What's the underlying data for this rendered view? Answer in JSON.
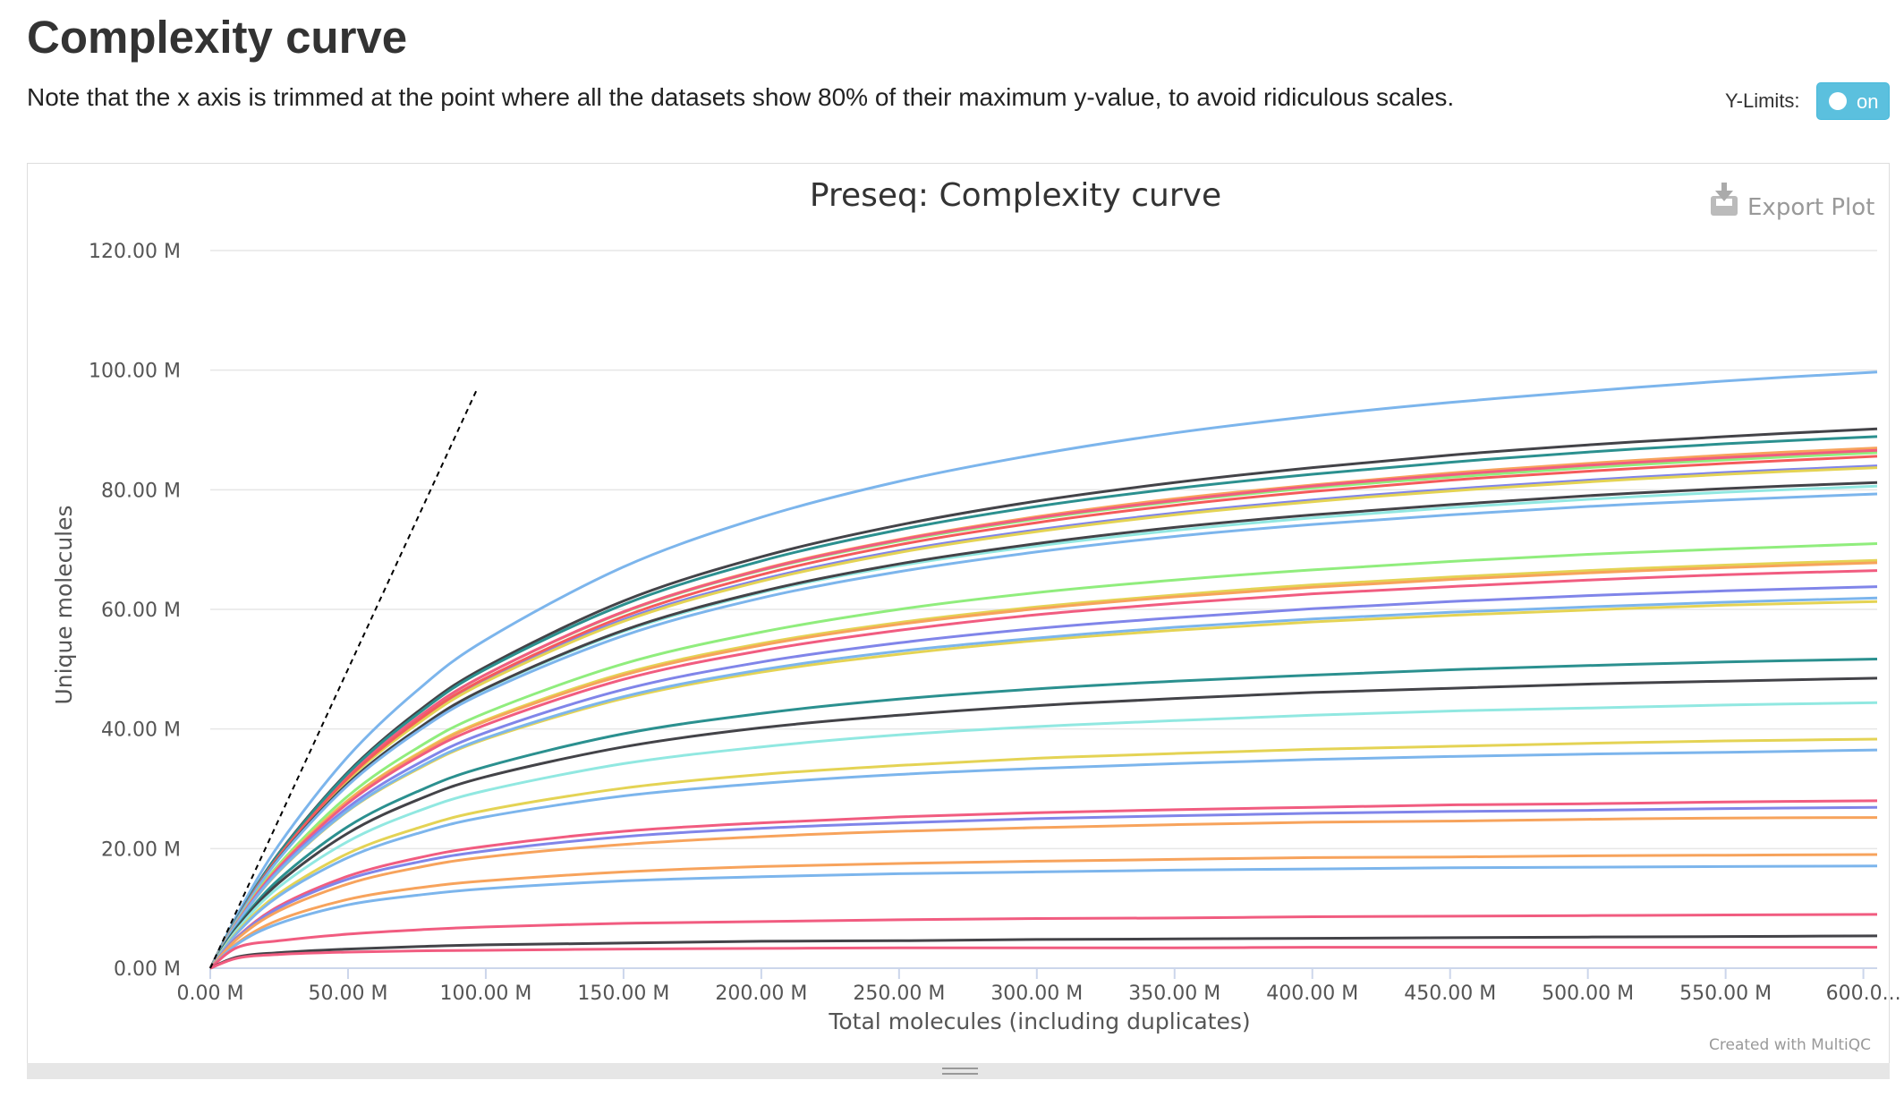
{
  "header": {
    "title": "Complexity curve",
    "note": "Note that the x axis is trimmed at the point where all the datasets show 80% of their maximum y-value, to avoid ridiculous scales.",
    "ylimits_label": "Y-Limits:",
    "ylimits_toggle_label": "on"
  },
  "plot": {
    "export_label": "Export Plot",
    "credit": "Created with MultiQC"
  },
  "chart_data": {
    "type": "line",
    "title": "Preseq: Complexity curve",
    "xlabel": "Total molecules (including duplicates)",
    "ylabel": "Unique molecules",
    "xlim": [
      0,
      605
    ],
    "ylim": [
      0,
      120
    ],
    "x_unit": "M",
    "y_unit": "M",
    "grid": true,
    "legend": "none",
    "x_ticks": [
      "0.00 M",
      "50.00 M",
      "100.00 M",
      "150.00 M",
      "200.00 M",
      "250.00 M",
      "300.00 M",
      "350.00 M",
      "400.00 M",
      "450.00 M",
      "500.00 M",
      "550.00 M",
      "600.0..."
    ],
    "x_tick_values": [
      0,
      50,
      100,
      150,
      200,
      250,
      300,
      350,
      400,
      450,
      500,
      550,
      600
    ],
    "y_ticks": [
      "0.00 M",
      "20.00 M",
      "40.00 M",
      "60.00 M",
      "80.00 M",
      "100.00 M",
      "120.00 M"
    ],
    "y_tick_values": [
      0,
      20,
      40,
      60,
      80,
      100,
      120
    ],
    "x_sample_points": [
      0,
      10,
      25,
      50,
      75,
      100,
      150,
      200,
      250,
      300,
      350,
      400,
      450,
      500,
      550,
      605
    ],
    "reference_line": {
      "name": "x = y",
      "x": [
        0,
        97
      ],
      "y": [
        0,
        97
      ],
      "style": "dashed",
      "color": "#000000"
    },
    "series": [
      {
        "color": "#7cb5ec",
        "y": [
          0,
          9.1,
          20.7,
          35.4,
          46.4,
          54.9,
          67.1,
          75.4,
          81.4,
          85.9,
          89.5,
          92.3,
          94.6,
          96.5,
          98.2,
          99.7
        ]
      },
      {
        "color": "#434348",
        "y": [
          0,
          8.6,
          19.3,
          32.8,
          42.8,
          50.4,
          61.4,
          68.8,
          74.1,
          78.1,
          81.2,
          83.7,
          85.8,
          87.5,
          88.9,
          90.2
        ]
      },
      {
        "color": "#90ed7d",
        "y": [
          0,
          8.5,
          19.0,
          32.1,
          41.7,
          49.1,
          59.5,
          66.5,
          71.4,
          75.1,
          78.0,
          80.3,
          82.1,
          83.7,
          85.0,
          86.2
        ]
      },
      {
        "color": "#f7a35c",
        "y": [
          0,
          8.5,
          19.0,
          32.1,
          41.8,
          49.1,
          59.6,
          66.7,
          71.7,
          75.5,
          78.5,
          80.8,
          82.8,
          84.4,
          85.8,
          87.0
        ]
      },
      {
        "color": "#8085e9",
        "y": [
          0,
          8.4,
          18.8,
          31.7,
          41.1,
          48.2,
          58.3,
          65.0,
          69.8,
          73.3,
          76.1,
          78.3,
          80.1,
          81.6,
          82.9,
          84.0
        ]
      },
      {
        "color": "#f15c80",
        "y": [
          0,
          8.5,
          19.0,
          32.1,
          41.8,
          49.1,
          59.6,
          66.6,
          71.6,
          75.3,
          78.2,
          80.6,
          82.5,
          84.1,
          85.4,
          86.6
        ]
      },
      {
        "color": "#e4d354",
        "y": [
          0,
          8.4,
          18.7,
          31.5,
          40.8,
          47.9,
          58.0,
          64.7,
          69.5,
          73.0,
          75.8,
          78.0,
          79.8,
          81.3,
          82.6,
          83.7
        ]
      },
      {
        "color": "#2b908f",
        "y": [
          0,
          8.6,
          19.2,
          32.6,
          42.4,
          50.0,
          60.8,
          68.1,
          73.3,
          77.2,
          80.2,
          82.6,
          84.6,
          86.3,
          87.7,
          88.9
        ]
      },
      {
        "color": "#f45b5b",
        "y": [
          0,
          8.4,
          18.8,
          31.8,
          41.3,
          48.5,
          58.8,
          65.8,
          70.8,
          74.5,
          77.4,
          79.7,
          81.6,
          83.1,
          84.4,
          85.6
        ]
      },
      {
        "color": "#91e8e1",
        "y": [
          0,
          8.3,
          18.4,
          30.9,
          39.9,
          46.7,
          56.3,
          62.8,
          67.3,
          70.6,
          73.2,
          75.3,
          77.0,
          78.4,
          79.6,
          80.6
        ]
      },
      {
        "color": "#434348",
        "y": [
          0,
          8.3,
          18.4,
          30.9,
          39.9,
          46.8,
          56.5,
          63.0,
          67.6,
          71.0,
          73.7,
          75.8,
          77.5,
          79.0,
          80.2,
          81.2
        ]
      },
      {
        "color": "#7cb5ec",
        "y": [
          0,
          8.3,
          18.3,
          30.6,
          39.5,
          46.2,
          55.6,
          61.9,
          66.3,
          69.6,
          72.2,
          74.2,
          75.8,
          77.2,
          78.3,
          79.3
        ]
      },
      {
        "color": "#90ed7d",
        "y": [
          0,
          8.0,
          17.4,
          28.8,
          36.8,
          42.7,
          50.9,
          56.2,
          60.0,
          62.8,
          64.9,
          66.6,
          68.0,
          69.2,
          70.1,
          71.0
        ]
      },
      {
        "color": "#e4d354",
        "y": [
          0,
          7.9,
          17.1,
          28.1,
          35.8,
          41.5,
          49.3,
          54.3,
          57.8,
          60.4,
          62.4,
          64.1,
          65.4,
          66.5,
          67.4,
          68.2
        ]
      },
      {
        "color": "#f7a35c",
        "y": [
          0,
          7.9,
          17.0,
          28.0,
          35.6,
          41.3,
          49.0,
          54.0,
          57.5,
          60.1,
          62.1,
          63.7,
          65.0,
          66.1,
          67.0,
          67.8
        ]
      },
      {
        "color": "#f15c80",
        "y": [
          0,
          7.8,
          16.9,
          27.6,
          35.2,
          40.7,
          48.3,
          53.1,
          56.5,
          59.1,
          61.0,
          62.6,
          63.8,
          64.9,
          65.8,
          66.5
        ]
      },
      {
        "color": "#8085e9",
        "y": [
          0,
          7.7,
          16.5,
          26.9,
          34.1,
          39.4,
          46.6,
          51.2,
          54.4,
          56.8,
          58.6,
          60.1,
          61.3,
          62.3,
          63.1,
          63.8
        ]
      },
      {
        "color": "#e4d354",
        "y": [
          0,
          7.6,
          16.2,
          26.3,
          33.2,
          38.3,
          45.1,
          49.5,
          52.5,
          54.8,
          56.5,
          57.9,
          59.0,
          59.9,
          60.7,
          61.3
        ]
      },
      {
        "color": "#7cb5ec",
        "y": [
          0,
          7.6,
          16.3,
          26.4,
          33.4,
          38.5,
          45.4,
          49.9,
          53.0,
          55.2,
          57.0,
          58.4,
          59.5,
          60.4,
          61.2,
          61.9
        ]
      },
      {
        "color": "#2b908f",
        "y": [
          0,
          7.1,
          14.9,
          23.7,
          29.5,
          33.7,
          39.2,
          42.6,
          45.0,
          46.7,
          48.0,
          49.0,
          49.9,
          50.6,
          51.2,
          51.7
        ]
      },
      {
        "color": "#434348",
        "y": [
          0,
          6.9,
          14.3,
          22.6,
          28.1,
          32.0,
          37.0,
          40.2,
          42.3,
          43.9,
          45.1,
          46.1,
          46.8,
          47.5,
          48.0,
          48.5
        ]
      },
      {
        "color": "#91e8e1",
        "y": [
          0,
          6.6,
          13.6,
          21.2,
          26.2,
          29.7,
          34.2,
          37.0,
          39.0,
          40.4,
          41.4,
          42.3,
          43.0,
          43.5,
          44.0,
          44.4
        ]
      },
      {
        "color": "#e4d354",
        "y": [
          0,
          6.2,
          12.5,
          19.2,
          23.4,
          26.4,
          30.1,
          32.4,
          33.9,
          35.1,
          35.9,
          36.6,
          37.1,
          37.6,
          38.0,
          38.3
        ]
      },
      {
        "color": "#7cb5ec",
        "y": [
          0,
          6.0,
          12.1,
          18.5,
          22.5,
          25.3,
          28.8,
          30.9,
          32.4,
          33.4,
          34.2,
          34.9,
          35.4,
          35.8,
          36.1,
          36.5
        ]
      },
      {
        "color": "#f15c80",
        "y": [
          0,
          5.3,
          10.4,
          15.4,
          18.4,
          20.4,
          22.9,
          24.3,
          25.3,
          26.0,
          26.5,
          26.9,
          27.3,
          27.5,
          27.8,
          28.0
        ]
      },
      {
        "color": "#8085e9",
        "y": [
          0,
          5.2,
          10.1,
          14.9,
          17.7,
          19.6,
          22.0,
          23.4,
          24.3,
          25.0,
          25.5,
          25.9,
          26.2,
          26.4,
          26.7,
          26.9
        ]
      },
      {
        "color": "#f7a35c",
        "y": [
          0,
          5.0,
          9.6,
          14.1,
          16.8,
          18.6,
          20.7,
          22.0,
          22.9,
          23.5,
          24.0,
          24.4,
          24.6,
          24.9,
          25.1,
          25.2
        ]
      },
      {
        "color": "#f7a35c",
        "y": [
          0,
          4.3,
          8.1,
          11.5,
          13.4,
          14.6,
          16.1,
          17.0,
          17.5,
          17.9,
          18.2,
          18.5,
          18.6,
          18.8,
          18.9,
          19.0
        ]
      },
      {
        "color": "#7cb5ec",
        "y": [
          0,
          4.1,
          7.5,
          10.6,
          12.2,
          13.3,
          14.6,
          15.3,
          15.8,
          16.1,
          16.4,
          16.6,
          16.8,
          16.9,
          17.0,
          17.1
        ]
      },
      {
        "color": "#f15c80",
        "y": [
          0,
          3.5,
          4.6,
          5.7,
          6.4,
          6.9,
          7.5,
          7.8,
          8.1,
          8.3,
          8.4,
          8.6,
          8.7,
          8.8,
          8.9,
          9.0
        ]
      },
      {
        "color": "#434348",
        "y": [
          0,
          1.9,
          2.6,
          3.2,
          3.6,
          3.9,
          4.2,
          4.5,
          4.6,
          4.8,
          4.9,
          5.0,
          5.1,
          5.2,
          5.3,
          5.4
        ]
      },
      {
        "color": "#f15c80",
        "y": [
          0,
          1.7,
          2.3,
          2.7,
          2.9,
          3.0,
          3.2,
          3.3,
          3.4,
          3.4,
          3.4,
          3.5,
          3.5,
          3.5,
          3.5,
          3.5
        ]
      }
    ]
  }
}
